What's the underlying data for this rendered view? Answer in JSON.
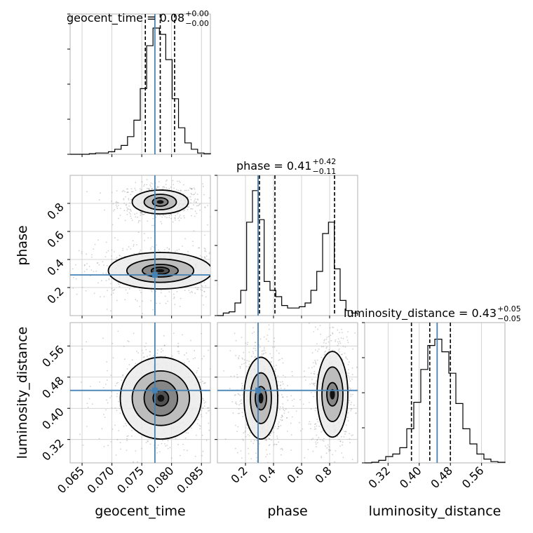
{
  "chart_data": {
    "type": "corner",
    "parameters": [
      "geocent_time",
      "phase",
      "luminosity_distance"
    ],
    "axis_labels": {
      "geocent_time": "geocent_time",
      "phase": "phase",
      "luminosity_distance": "luminosity_distance"
    },
    "ranges": {
      "geocent_time": [
        0.063,
        0.0865
      ],
      "phase": [
        0.0,
        1.0
      ],
      "luminosity_distance": [
        0.26,
        0.62
      ]
    },
    "ticks": {
      "geocent_time": [
        0.065,
        0.07,
        0.075,
        0.08,
        0.085
      ],
      "phase": [
        0.2,
        0.4,
        0.6,
        0.8
      ],
      "luminosity_distance": [
        0.32,
        0.4,
        0.48,
        0.56
      ]
    },
    "tick_labels": {
      "geocent_time": [
        "0.065",
        "0.070",
        "0.075",
        "0.080",
        "0.085"
      ],
      "phase": [
        "0.2",
        "0.4",
        "0.6",
        "0.8"
      ],
      "luminosity_distance": [
        "0.32",
        "0.40",
        "0.48",
        "0.56"
      ]
    },
    "truths": {
      "geocent_time": 0.0772,
      "phase": 0.29,
      "luminosity_distance": 0.446
    },
    "truth_color": "#4682b4",
    "titles": {
      "geocent_time": {
        "prefix": "geocent_time = 0.08",
        "plus": "+0.00",
        "minus": "−0.00"
      },
      "phase": {
        "prefix": "phase = 0.41",
        "plus": "+0.42",
        "minus": "−0.11"
      },
      "luminosity_distance": {
        "prefix": "luminosity_distance = 0.43",
        "plus": "+0.05",
        "minus": "−0.05"
      }
    },
    "quantiles": {
      "geocent_time": [
        0.0756,
        0.0781,
        0.0805
      ],
      "phase": [
        0.3,
        0.41,
        0.835
      ],
      "luminosity_distance": [
        0.38,
        0.427,
        0.48
      ]
    },
    "histograms": {
      "geocent_time": {
        "edges_range": [
          0.063,
          0.0865
        ],
        "counts": [
          0,
          0,
          0,
          0.005,
          0.01,
          0.01,
          0.02,
          0.04,
          0.07,
          0.14,
          0.27,
          0.52,
          0.86,
          1.0,
          0.95,
          0.75,
          0.44,
          0.21,
          0.09,
          0.04,
          0.01,
          0.005
        ]
      },
      "phase": {
        "edges_range": [
          0.0,
          1.0
        ],
        "counts": [
          0,
          0.02,
          0.03,
          0.1,
          0.2,
          0.74,
          0.99,
          0.76,
          0.27,
          0.2,
          0.15,
          0.08,
          0.06,
          0.06,
          0.07,
          0.1,
          0.2,
          0.35,
          0.65,
          0.74,
          0.37,
          0.12,
          0.04,
          0.02
        ]
      },
      "luminosity_distance": {
        "edges_range": [
          0.26,
          0.62
        ],
        "counts": [
          0,
          0.005,
          0.02,
          0.05,
          0.07,
          0.12,
          0.27,
          0.48,
          0.74,
          0.93,
          0.98,
          0.88,
          0.71,
          0.47,
          0.27,
          0.15,
          0.07,
          0.03,
          0.01,
          0.005
        ]
      }
    },
    "pairs": [
      {
        "x": "geocent_time",
        "y": "phase",
        "modes": [
          {
            "center": [
              0.0781,
              0.81
            ],
            "contours": [
              [
                0.0013,
                0.03
              ],
              [
                0.0027,
                0.055
              ],
              [
                0.0047,
                0.085
              ]
            ]
          },
          {
            "center": [
              0.0781,
              0.32
            ],
            "contours": [
              [
                0.0015,
                0.025
              ],
              [
                0.003,
                0.045
              ],
              [
                0.0056,
                0.083
              ],
              [
                0.0087,
                0.13
              ]
            ]
          }
        ]
      },
      {
        "x": "geocent_time",
        "y": "luminosity_distance",
        "modes": [
          {
            "center": [
              0.0782,
              0.426
            ],
            "contours": [
              [
                0.0013,
                0.02
              ],
              [
                0.0028,
                0.045
              ],
              [
                0.0048,
                0.07
              ],
              [
                0.0068,
                0.105
              ]
            ]
          }
        ]
      },
      {
        "x": "phase",
        "y": "luminosity_distance",
        "modes": [
          {
            "center": [
              0.31,
              0.426
            ],
            "contours": [
              [
                0.04,
                0.03
              ],
              [
                0.075,
                0.065
              ],
              [
                0.12,
                0.105
              ]
            ]
          },
          {
            "center": [
              0.82,
              0.436
            ],
            "contours": [
              [
                0.04,
                0.03
              ],
              [
                0.075,
                0.07
              ],
              [
                0.11,
                0.11
              ]
            ]
          }
        ]
      }
    ]
  }
}
